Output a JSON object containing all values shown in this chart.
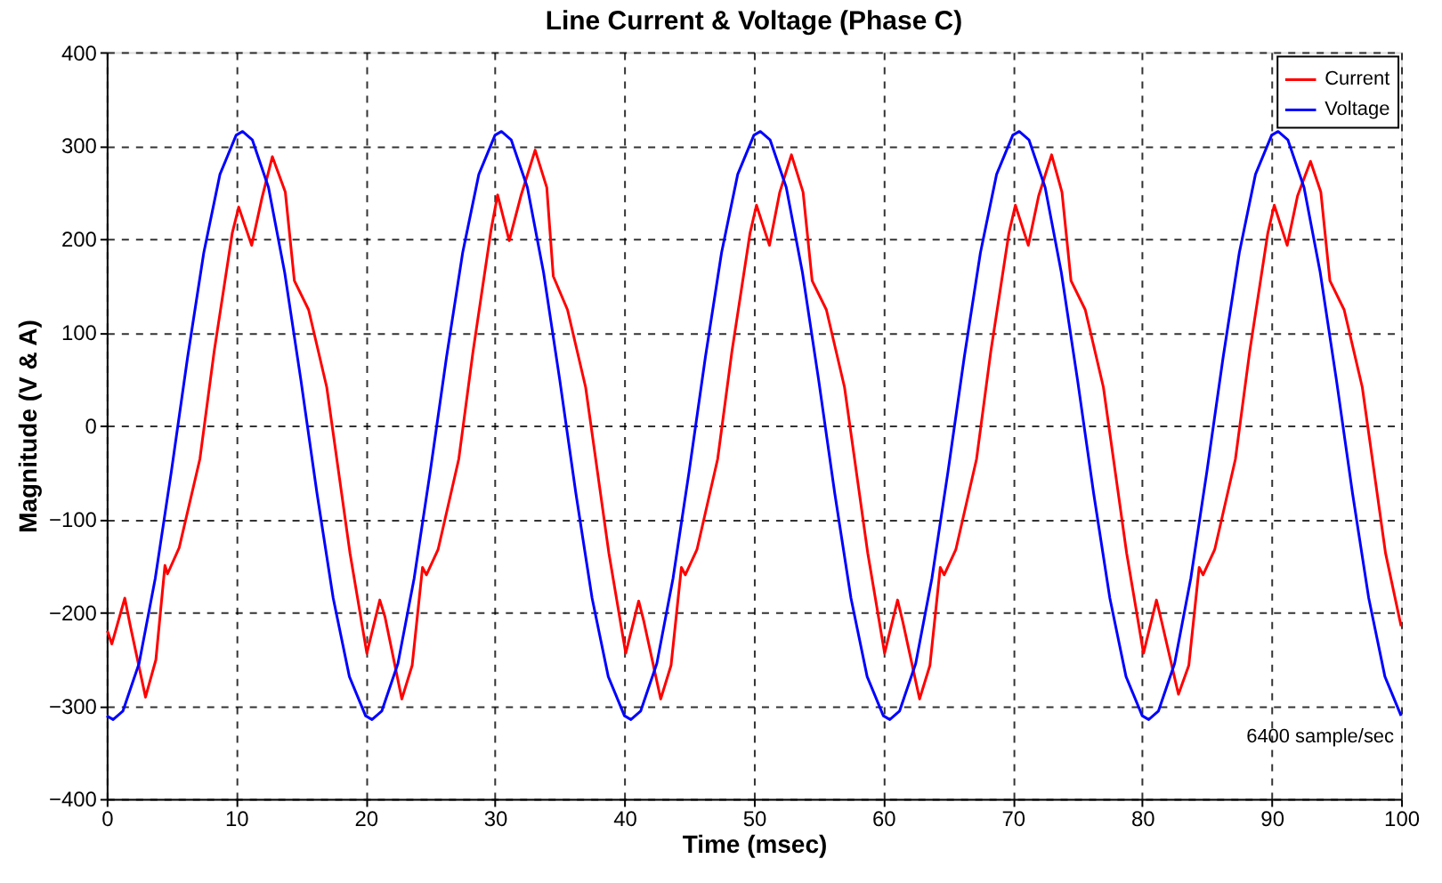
{
  "chart_data": {
    "type": "line",
    "title": "Line Current & Voltage (Phase C)",
    "xlabel": "Time (msec)",
    "ylabel": "Magnitude (V & A)",
    "xlim": [
      0,
      100
    ],
    "xticks": [
      0,
      10,
      20,
      30,
      40,
      50,
      60,
      70,
      80,
      90,
      100
    ],
    "ylim": [
      -400,
      400
    ],
    "yticks": [
      -400,
      -300,
      -200,
      -100,
      0,
      100,
      200,
      300,
      400
    ],
    "grid": true,
    "legend": "top right",
    "marker": "none",
    "line_style": "solid",
    "annotations": [
      "6400 sample/sec"
    ],
    "series": [
      {
        "name": "Current",
        "color": "#ff0000",
        "x": [
          0.05,
          0.4,
          1.4,
          1.8,
          3.0,
          3.8,
          4.5,
          4.7,
          5.6,
          7.2,
          8.3,
          9.7,
          10.2,
          11.2,
          12.0,
          12.8,
          13.8,
          14.5,
          15.6,
          17.0,
          17.9,
          18.8,
          20.1,
          21.1,
          21.5,
          22.8,
          23.6,
          24.4,
          24.7,
          25.6,
          27.2,
          28.3,
          29.7,
          30.2,
          31.1,
          32.0,
          33.1,
          34.0,
          34.5,
          35.6,
          37.0,
          37.9,
          38.8,
          40.1,
          41.1,
          41.5,
          42.8,
          43.6,
          44.4,
          44.7,
          45.6,
          47.2,
          48.3,
          49.7,
          50.2,
          51.2,
          52.0,
          52.9,
          53.8,
          54.5,
          55.6,
          57.0,
          57.9,
          58.8,
          60.1,
          61.1,
          61.5,
          62.8,
          63.6,
          64.4,
          64.7,
          65.6,
          67.2,
          68.3,
          69.7,
          70.2,
          71.2,
          72.0,
          73.0,
          73.8,
          74.5,
          75.6,
          77.0,
          77.9,
          78.8,
          80.1,
          81.1,
          81.5,
          82.8,
          83.6,
          84.4,
          84.7,
          85.6,
          87.2,
          88.3,
          89.7,
          90.2,
          91.2,
          92.0,
          93.0,
          93.8,
          94.5,
          95.6,
          97.0,
          97.9,
          98.8,
          100
        ],
        "values": [
          -220,
          -234,
          -185,
          -213,
          -291,
          -251,
          -150,
          -159,
          -131,
          -36,
          79,
          206,
          234,
          193,
          244,
          288,
          250,
          155,
          124,
          41,
          -48,
          -137,
          -244,
          -187,
          -205,
          -293,
          -257,
          -152,
          -160,
          -133,
          -36,
          79,
          210,
          247,
          198,
          246,
          295,
          255,
          160,
          124,
          41,
          -48,
          -137,
          -244,
          -188,
          -210,
          -293,
          -257,
          -152,
          -160,
          -133,
          -36,
          79,
          206,
          236,
          193,
          250,
          290,
          250,
          155,
          124,
          41,
          -48,
          -137,
          -244,
          -187,
          -210,
          -293,
          -257,
          -152,
          -160,
          -133,
          -36,
          79,
          206,
          236,
          193,
          246,
          290,
          250,
          155,
          124,
          41,
          -48,
          -137,
          -244,
          -187,
          -210,
          -288,
          -257,
          -152,
          -160,
          -133,
          -36,
          79,
          206,
          236,
          193,
          246,
          283,
          250,
          155,
          124,
          41,
          -48,
          -137,
          -215
        ]
      },
      {
        "name": "Voltage",
        "color": "#0000ff",
        "x": [
          0,
          0.5,
          1.25,
          2.5,
          3.75,
          5,
          6.25,
          7.5,
          8.75,
          10,
          10.5,
          11.25,
          12.5,
          13.75,
          15,
          16.25,
          17.5,
          18.75,
          20,
          20.5,
          21.25,
          22.5,
          23.75,
          25,
          26.25,
          27.5,
          28.75,
          30,
          30.5,
          31.25,
          32.5,
          33.75,
          35,
          36.25,
          37.5,
          38.75,
          40,
          40.5,
          41.25,
          42.5,
          43.75,
          45,
          46.25,
          47.5,
          48.75,
          50,
          50.5,
          51.25,
          52.5,
          53.75,
          55,
          56.25,
          57.5,
          58.75,
          60,
          60.5,
          61.25,
          62.5,
          63.75,
          65,
          66.25,
          67.5,
          68.75,
          70,
          70.5,
          71.25,
          72.5,
          73.75,
          75,
          76.25,
          77.5,
          78.75,
          80,
          80.5,
          81.25,
          82.5,
          83.75,
          85,
          86.25,
          87.5,
          88.75,
          90,
          90.5,
          91.25,
          92.5,
          93.75,
          95,
          96.25,
          97.5,
          98.75,
          100
        ],
        "values": [
          -311,
          -315,
          -306,
          -255,
          -164,
          -49,
          73,
          185,
          269,
          311,
          315,
          306,
          255,
          164,
          49,
          -73,
          -185,
          -269,
          -311,
          -315,
          -306,
          -255,
          -164,
          -49,
          73,
          185,
          269,
          311,
          315,
          306,
          255,
          164,
          49,
          -73,
          -185,
          -269,
          -311,
          -315,
          -306,
          -255,
          -164,
          -49,
          73,
          185,
          269,
          311,
          315,
          306,
          255,
          164,
          49,
          -73,
          -185,
          -269,
          -311,
          -315,
          -306,
          -255,
          -164,
          -49,
          73,
          185,
          269,
          311,
          315,
          306,
          255,
          164,
          49,
          -73,
          -185,
          -269,
          -311,
          -315,
          -306,
          -255,
          -164,
          -49,
          73,
          185,
          269,
          311,
          315,
          306,
          255,
          164,
          49,
          -73,
          -185,
          -269,
          -311
        ]
      }
    ]
  }
}
